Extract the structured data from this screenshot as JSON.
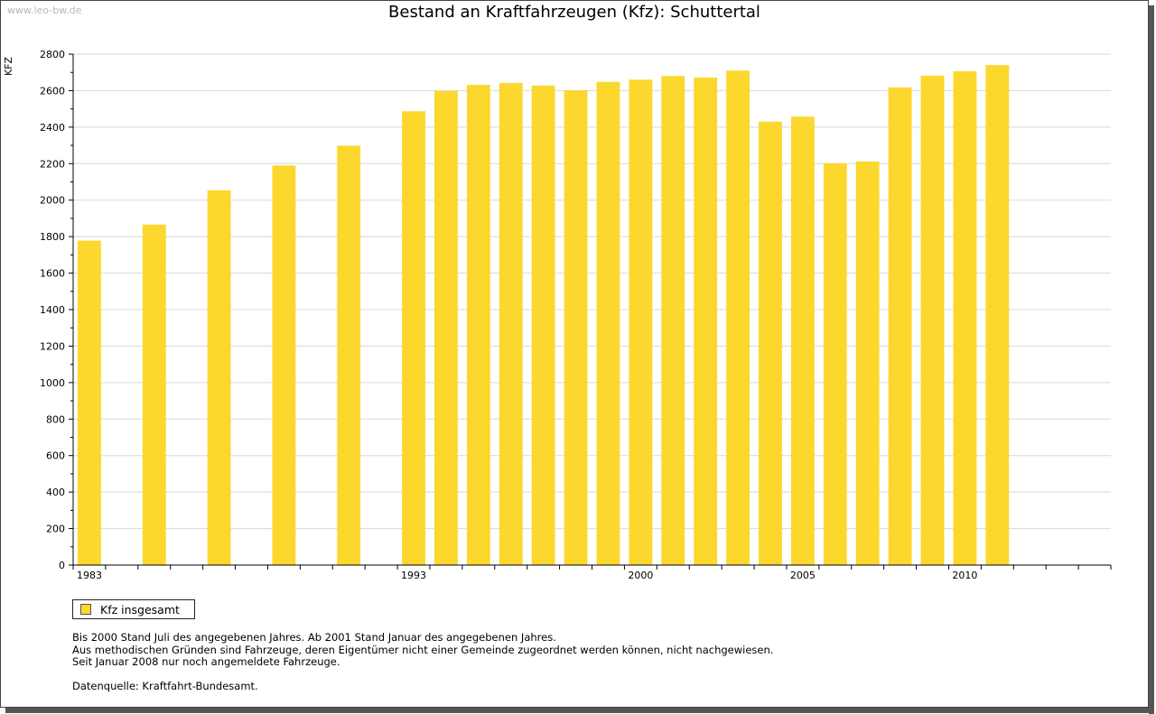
{
  "watermark": "www.leo-bw.de",
  "chart_data": {
    "type": "bar",
    "title": "Bestand an Kraftfahrzeugen (Kfz): Schuttertal",
    "ylabel": "KFZ",
    "xlabel": "",
    "ylim": [
      0,
      2800
    ],
    "ytick_step": 200,
    "ytick_labels": [
      "0",
      "200",
      "400",
      "600",
      "800",
      "1000",
      "1200",
      "1400",
      "1600",
      "1800",
      "2000",
      "2200",
      "2400",
      "2600",
      "2800"
    ],
    "grid": true,
    "categories": [
      1983,
      1984,
      1985,
      1986,
      1987,
      1988,
      1989,
      1990,
      1991,
      1992,
      1993,
      1994,
      1995,
      1996,
      1997,
      1998,
      1999,
      2000,
      2001,
      2002,
      2003,
      2004,
      2005,
      2006,
      2007,
      2008,
      2009,
      2010,
      2011,
      2012,
      2013,
      2014
    ],
    "xtick_labels": [
      {
        "category": 1983,
        "label": "1983"
      },
      {
        "category": 1993,
        "label": "1993"
      },
      {
        "category": 2000,
        "label": "2000"
      },
      {
        "category": 2005,
        "label": "2005"
      },
      {
        "category": 2010,
        "label": "2010"
      }
    ],
    "series": [
      {
        "name": "Kfz insgesamt",
        "color": "#fcd72e",
        "points": [
          {
            "x": 1983,
            "y": 1778
          },
          {
            "x": 1985,
            "y": 1866
          },
          {
            "x": 1987,
            "y": 2054
          },
          {
            "x": 1989,
            "y": 2190
          },
          {
            "x": 1991,
            "y": 2298
          },
          {
            "x": 1993,
            "y": 2487
          },
          {
            "x": 1994,
            "y": 2598
          },
          {
            "x": 1995,
            "y": 2632
          },
          {
            "x": 1996,
            "y": 2642
          },
          {
            "x": 1997,
            "y": 2628
          },
          {
            "x": 1998,
            "y": 2602
          },
          {
            "x": 1999,
            "y": 2648
          },
          {
            "x": 2000,
            "y": 2660
          },
          {
            "x": 2001,
            "y": 2680
          },
          {
            "x": 2002,
            "y": 2672
          },
          {
            "x": 2003,
            "y": 2710
          },
          {
            "x": 2004,
            "y": 2430
          },
          {
            "x": 2005,
            "y": 2458
          },
          {
            "x": 2006,
            "y": 2202
          },
          {
            "x": 2007,
            "y": 2212
          },
          {
            "x": 2008,
            "y": 2618
          },
          {
            "x": 2009,
            "y": 2682
          },
          {
            "x": 2010,
            "y": 2706
          },
          {
            "x": 2011,
            "y": 2740
          }
        ]
      }
    ],
    "legend_position": "bottom-left"
  },
  "legend": {
    "label": "Kfz insgesamt"
  },
  "notes": [
    "Bis 2000 Stand Juli des angegebenen Jahres. Ab 2001 Stand Januar des angegebenen Jahres.",
    "Aus methodischen Gründen sind Fahrzeuge, deren Eigentümer nicht einer Gemeinde zugeordnet werden können, nicht nachgewiesen.",
    "Seit Januar 2008 nur noch angemeldete Fahrzeuge."
  ],
  "source": "Datenquelle: Kraftfahrt-Bundesamt."
}
